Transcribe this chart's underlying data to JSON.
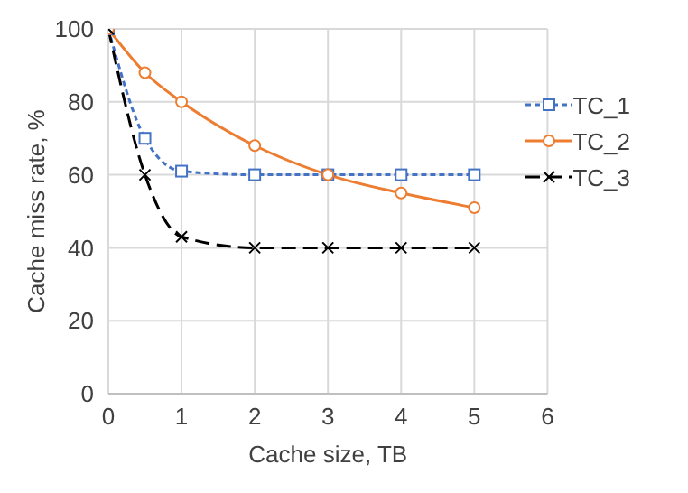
{
  "chart_data": {
    "type": "line",
    "xlabel": "Cache size, TB",
    "ylabel": "Cache miss rate, %",
    "x": [
      0,
      0.5,
      1,
      2,
      3,
      4,
      5
    ],
    "series": [
      {
        "name": "TC_1",
        "color": "#4472c4",
        "values": [
          100,
          70,
          61,
          60,
          60,
          60,
          60
        ],
        "marker": "square",
        "line_style": "dotted"
      },
      {
        "name": "TC_2",
        "color": "#ed7d31",
        "values": [
          100,
          88,
          80,
          68,
          60,
          55,
          51
        ],
        "marker": "circle",
        "line_style": "solid"
      },
      {
        "name": "TC_3",
        "color": "#000000",
        "values": [
          100,
          60,
          43,
          40,
          40,
          40,
          40
        ],
        "marker": "cross",
        "line_style": "dashed"
      }
    ],
    "xlim": [
      0,
      6
    ],
    "xticks": [
      0,
      1,
      2,
      3,
      4,
      5,
      6
    ],
    "ylim": [
      0,
      100
    ],
    "yticks": [
      0,
      20,
      40,
      60,
      80,
      100
    ],
    "grid": true,
    "legend": "top right"
  }
}
